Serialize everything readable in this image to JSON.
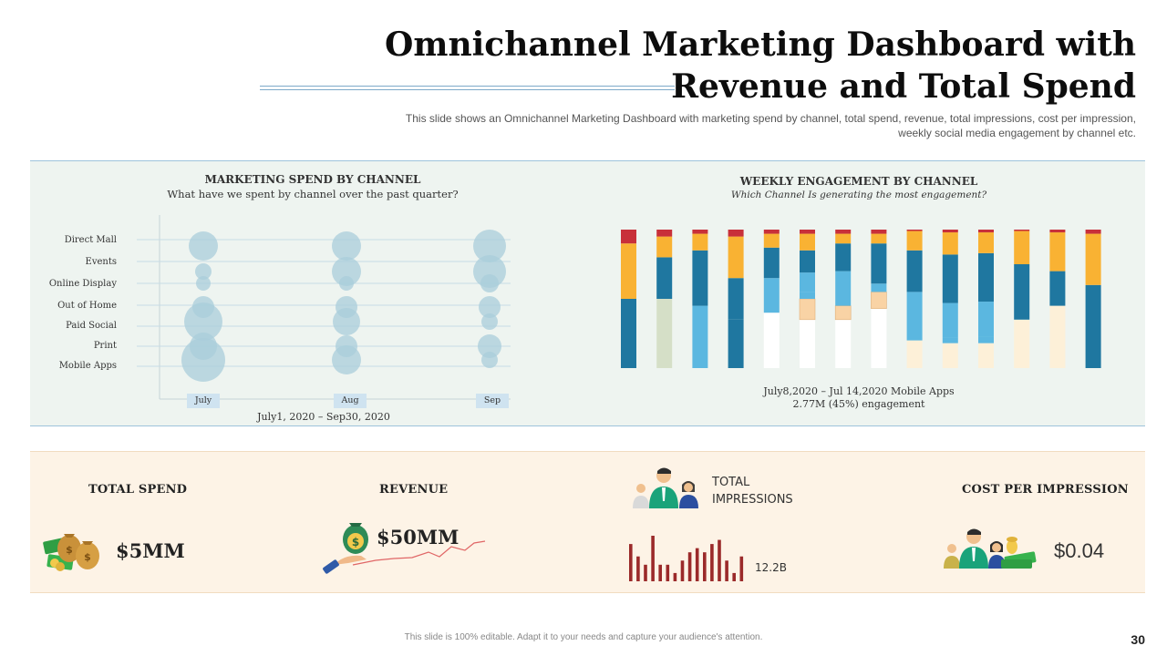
{
  "slide": {
    "title_line1": "Omnichannel Marketing Dashboard with",
    "title_line2": "Revenue and Total Spend",
    "subtitle_line1": "This slide shows an Omnichannel Marketing Dashboard  with marketing spend by channel, total spend, revenue,  total impressions, cost per impression,",
    "subtitle_line2": "weekly social media engagement  by channel etc.",
    "footer": "This slide is 100% editable. Adapt it to your needs and capture your audience's attention.",
    "page_number": "30"
  },
  "colors": {
    "bubble": "#a9cedb",
    "seg_blue": "#1f77a0",
    "seg_light": "#5bb7e0",
    "seg_orange": "#f9b233",
    "seg_red": "#c8303a",
    "seg_cream": "#fdf0d8",
    "seg_white": "#ffffff",
    "seg_sage": "#d5dfc7",
    "seg_peach": "#f9d3a5",
    "spark_red": "#9b2a2a"
  },
  "chart_data": [
    {
      "type": "scatter",
      "title": "MARKETING  SPEND BY CHANNEL",
      "subtitle": "What have we spent by channel  over the past quarter?",
      "categories": [
        "July",
        "Aug",
        "Sep"
      ],
      "channels": [
        "Direct Mall",
        "Events",
        "Online Display",
        "Out of Home",
        "Paid Social",
        "Print",
        "Mobile Apps"
      ],
      "series": [
        {
          "name": "July",
          "values": [
            16,
            9,
            8,
            12,
            21,
            15,
            24
          ]
        },
        {
          "name": "Aug",
          "values": [
            16,
            16,
            8,
            12,
            15,
            12,
            16
          ]
        },
        {
          "name": "Sep",
          "values": [
            18,
            18,
            10,
            12,
            9,
            13,
            9
          ]
        }
      ],
      "xlabel": "July1, 2020 – Sep30, 2020"
    },
    {
      "type": "bar",
      "stacked": true,
      "title": "WEEKLY ENGAGEMENT BY CHANNEL",
      "subtitle": "Which Channel  Is generating  the most engagement?",
      "caption_line1": "July8,2020 – Jul 14,2020 Mobile Apps",
      "caption_line2": "2.77M (45%) engagement",
      "weeks": [
        [
          [
            "seg_blue",
            50
          ],
          [
            "seg_orange",
            40
          ],
          [
            "seg_red",
            10
          ]
        ],
        [
          [
            "seg_sage",
            50
          ],
          [
            "seg_blue",
            30
          ],
          [
            "seg_orange",
            15
          ],
          [
            "seg_red",
            5
          ]
        ],
        [
          [
            "seg_light",
            45
          ],
          [
            "seg_blue",
            40
          ],
          [
            "seg_orange",
            12
          ],
          [
            "seg_red",
            3
          ]
        ],
        [
          [
            "seg_blue",
            35
          ],
          [
            "seg_blue",
            30
          ],
          [
            "seg_orange",
            30
          ],
          [
            "seg_red",
            5
          ]
        ],
        [
          [
            "seg_white",
            40
          ],
          [
            "seg_light",
            25
          ],
          [
            "seg_blue",
            22
          ],
          [
            "seg_orange",
            10
          ],
          [
            "seg_red",
            3
          ]
        ],
        [
          [
            "seg_white",
            35
          ],
          [
            "seg_peach",
            15
          ],
          [
            "seg_light",
            5
          ],
          [
            "seg_light",
            14
          ],
          [
            "seg_blue",
            16
          ],
          [
            "seg_orange",
            12
          ],
          [
            "seg_red",
            3
          ]
        ],
        [
          [
            "seg_white",
            35
          ],
          [
            "seg_peach",
            10
          ],
          [
            "seg_light",
            5
          ],
          [
            "seg_light",
            20
          ],
          [
            "seg_blue",
            20
          ],
          [
            "seg_orange",
            7
          ],
          [
            "seg_red",
            3
          ]
        ],
        [
          [
            "seg_white",
            43
          ],
          [
            "seg_peach",
            12
          ],
          [
            "seg_light",
            6
          ],
          [
            "seg_blue",
            29
          ],
          [
            "seg_orange",
            7
          ],
          [
            "seg_red",
            3
          ]
        ],
        [
          [
            "seg_cream",
            20
          ],
          [
            "seg_light",
            5
          ],
          [
            "seg_light",
            30
          ],
          [
            "seg_blue",
            30
          ],
          [
            "seg_orange",
            14
          ],
          [
            "seg_red",
            1
          ]
        ],
        [
          [
            "seg_cream",
            18
          ],
          [
            "seg_light",
            4
          ],
          [
            "seg_light",
            25
          ],
          [
            "seg_blue",
            35
          ],
          [
            "seg_orange",
            16
          ],
          [
            "seg_red",
            2
          ]
        ],
        [
          [
            "seg_cream",
            18
          ],
          [
            "seg_light",
            5
          ],
          [
            "seg_light",
            25
          ],
          [
            "seg_blue",
            35
          ],
          [
            "seg_orange",
            15
          ],
          [
            "seg_red",
            2
          ]
        ],
        [
          [
            "seg_cream",
            35
          ],
          [
            "seg_blue",
            40
          ],
          [
            "seg_orange",
            24
          ],
          [
            "seg_red",
            1
          ]
        ],
        [
          [
            "seg_cream",
            45
          ],
          [
            "seg_blue",
            25
          ],
          [
            "seg_orange",
            28
          ],
          [
            "seg_red",
            2
          ]
        ],
        [
          [
            "seg_blue",
            60
          ],
          [
            "seg_orange",
            37
          ],
          [
            "seg_red",
            3
          ]
        ]
      ]
    },
    {
      "type": "bar",
      "name": "impressions-sparkline",
      "values": [
        9,
        6,
        4,
        11,
        4,
        4,
        2,
        5,
        7,
        8,
        7,
        9,
        10,
        5,
        2,
        6
      ],
      "label": "12.2B"
    }
  ],
  "kpis": {
    "total_spend": {
      "label": "TOTAL SPEND",
      "value": "$5MM",
      "icon": "money-bags-icon"
    },
    "revenue": {
      "label": "REVENUE",
      "value": "$50MM",
      "icon": "money-hand-icon"
    },
    "impressions": {
      "label_line1": "TOTAL",
      "label_line2": "IMPRESSIONS",
      "value": "12.2B",
      "icon": "people-group-icon"
    },
    "cost_per_impression": {
      "label": "COST PER IMPRESSION",
      "value": "$0.04",
      "icon": "team-money-icon"
    }
  }
}
